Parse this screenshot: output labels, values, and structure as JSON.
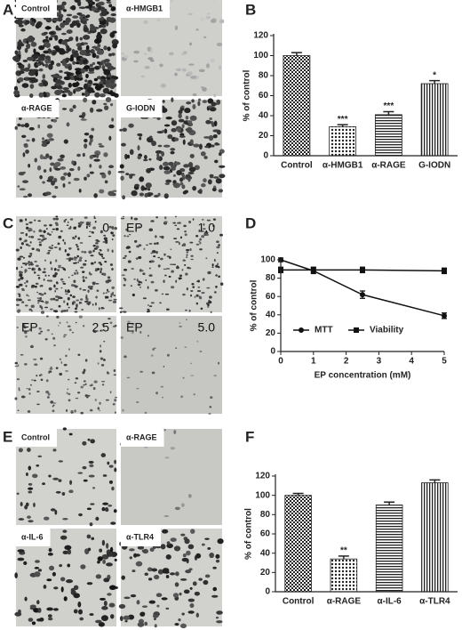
{
  "panels": [
    "A",
    "B",
    "C",
    "D",
    "E",
    "F"
  ],
  "panel_a": [
    "Control",
    "α-HMGB1",
    "α-RAGE",
    "G-IODN"
  ],
  "panel_c": [
    {
      "right": "0"
    },
    {
      "left": "EP",
      "right": "1.0"
    },
    {
      "left": "EP",
      "right": "2.5"
    },
    {
      "left": "EP",
      "right": "5.0"
    }
  ],
  "panel_e": [
    "Control",
    "α-RAGE",
    "α-IL-6",
    "α-TLR4"
  ],
  "chart_data": [
    {
      "type": "bar",
      "ylabel": "% of control",
      "categories": [
        "Control",
        "α-HMGB1",
        "α-RAGE",
        "G-IODN"
      ],
      "values": [
        100,
        29,
        41,
        72
      ],
      "errors": [
        3,
        2,
        3,
        3
      ],
      "annotations": [
        null,
        "***",
        "***",
        "*"
      ],
      "ylim": [
        0,
        120
      ],
      "yticks": [
        0,
        20,
        40,
        60,
        80,
        100,
        120
      ]
    },
    {
      "type": "line",
      "ylabel": "% of control",
      "xlabel": "EP concentration (mM)",
      "x": [
        0,
        1,
        2.5,
        5
      ],
      "series": [
        {
          "name": "MTT",
          "color": "#111111",
          "marker": "circle",
          "values": [
            100,
            88,
            62,
            39
          ],
          "errors": [
            2,
            3,
            4,
            3
          ]
        },
        {
          "name": "Viability",
          "color": "#111111",
          "marker": "square",
          "values": [
            89,
            89,
            89,
            88
          ],
          "errors": [
            3,
            3,
            3,
            3
          ]
        }
      ],
      "xlim": [
        0,
        5
      ],
      "xticks": [
        0,
        1,
        2,
        3,
        4,
        5
      ],
      "ylim": [
        0,
        100
      ],
      "yticks": [
        0,
        20,
        40,
        60,
        80,
        100
      ]
    },
    {
      "type": "bar",
      "ylabel": "% of control",
      "categories": [
        "Control",
        "α-RAGE",
        "α-IL-6",
        "α-TLR4"
      ],
      "values": [
        100,
        34,
        90,
        113
      ],
      "errors": [
        2,
        3,
        3,
        3
      ],
      "annotations": [
        null,
        "**",
        null,
        null
      ],
      "ylim": [
        0,
        120
      ],
      "yticks": [
        0,
        20,
        40,
        60,
        80,
        100,
        120
      ]
    }
  ]
}
